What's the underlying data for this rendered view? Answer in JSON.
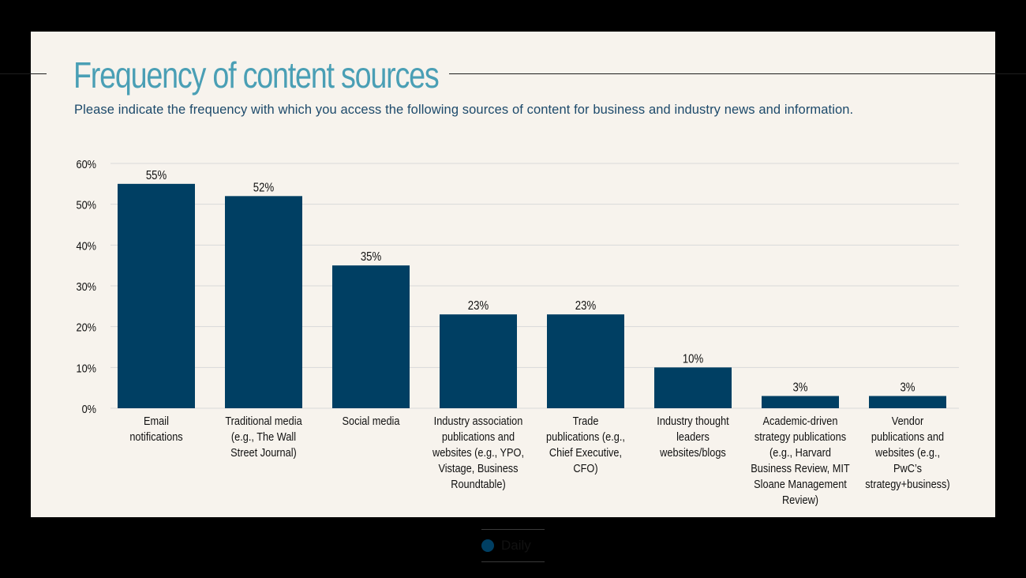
{
  "title": "Frequency of content sources",
  "subtitle": "Please indicate the frequency with which you access the following sources of content for business and industry news and information.",
  "legend": {
    "label": "Daily",
    "color": "#003f63"
  },
  "colors": {
    "bar": "#003f63",
    "title": "#4a9fb5",
    "subtitle": "#1d4a6b",
    "panel": "#f7f3ed",
    "grid": "#d9d9d9"
  },
  "chart_data": {
    "type": "bar",
    "title": "Frequency of content sources",
    "categories": [
      "Email notifications",
      "Traditional media (e.g., The Wall Street Journal)",
      "Social media",
      "Industry association publications and websites (e.g., YPO, Vistage, Business Roundtable)",
      "Trade publications (e.g., Chief Executive, CFO)",
      "Industry thought leaders websites/blogs",
      "Academic-driven strategy publications (e.g., Harvard Business Review, MIT Sloane Management Review)",
      "Vendor publications and websites (e.g., PwC’s strategy+business)"
    ],
    "category_lines": [
      [
        "Email",
        "notifications"
      ],
      [
        "Traditional media",
        "(e.g., The Wall",
        "Street Journal)"
      ],
      [
        "Social media"
      ],
      [
        "Industry association",
        "publications and",
        "websites (e.g., YPO,",
        "Vistage, Business",
        "Roundtable)"
      ],
      [
        "Trade",
        "publications (e.g.,",
        "Chief Executive,",
        "CFO)"
      ],
      [
        "Industry thought",
        "leaders",
        "websites/blogs"
      ],
      [
        "Academic-driven",
        "strategy publications",
        "(e.g., Harvard",
        "Business Review, MIT",
        "Sloane Management",
        "Review)"
      ],
      [
        "Vendor",
        "publications and",
        "websites (e.g.,",
        "PwC’s",
        "strategy+business)"
      ]
    ],
    "series": [
      {
        "name": "Daily",
        "values": [
          55,
          52,
          35,
          23,
          23,
          10,
          3,
          3
        ]
      }
    ],
    "value_labels": [
      "55%",
      "52%",
      "35%",
      "23%",
      "23%",
      "10%",
      "3%",
      "3%"
    ],
    "ylim": [
      0,
      60
    ],
    "yticks": [
      0,
      10,
      20,
      30,
      40,
      50,
      60
    ],
    "ytick_labels": [
      "0%",
      "10%",
      "20%",
      "30%",
      "40%",
      "50%",
      "60%"
    ],
    "grid": true,
    "legend_position": "bottom"
  }
}
